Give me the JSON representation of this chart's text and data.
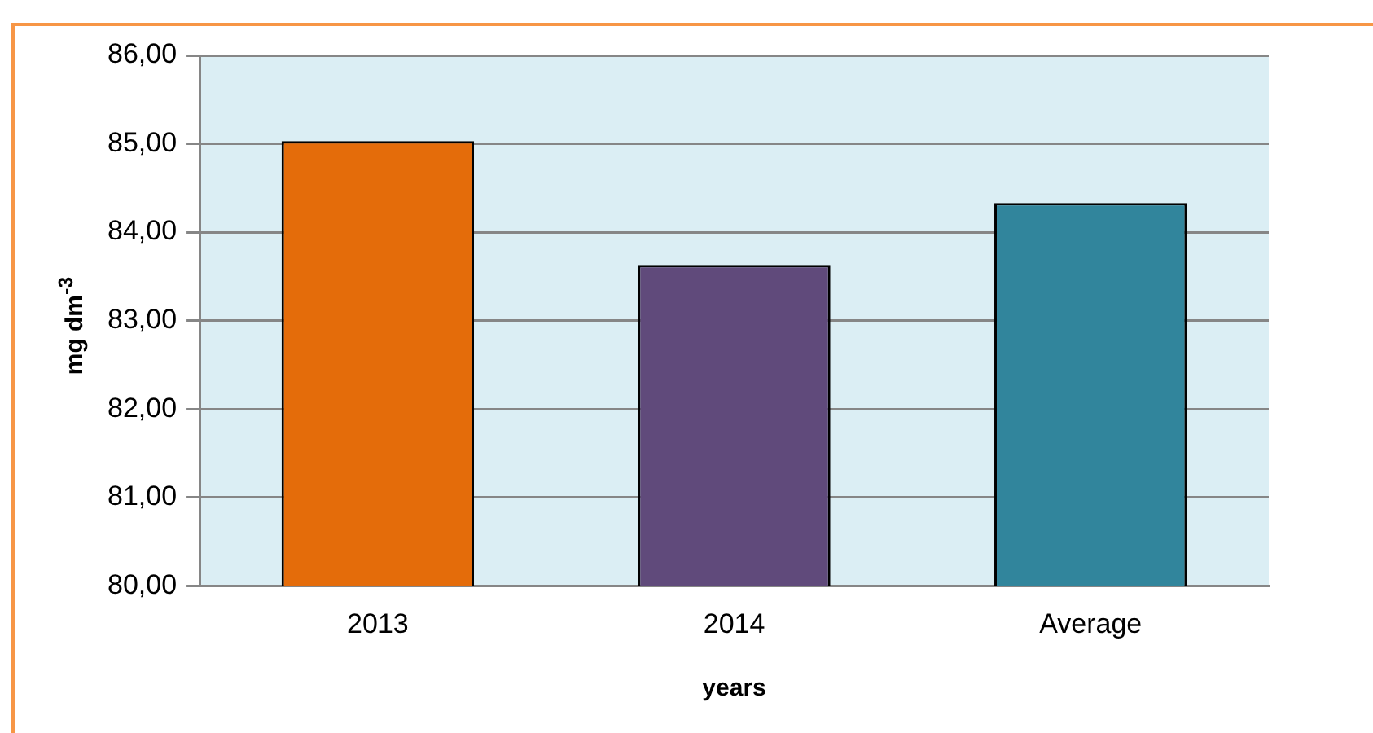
{
  "chart_data": {
    "type": "bar",
    "xlabel": "years",
    "ylabel": "mg dm$^{-3}$",
    "categories": [
      "2013",
      "2014",
      "Average"
    ],
    "values": [
      85.03,
      83.63,
      84.33
    ],
    "colors": [
      "#e46c0a",
      "#604a7b",
      "#31859c"
    ],
    "ylim": [
      80,
      86
    ],
    "yticks": [
      {
        "value": 80,
        "label": "80,00"
      },
      {
        "value": 81,
        "label": "81,00"
      },
      {
        "value": 82,
        "label": "82,00"
      },
      {
        "value": 83,
        "label": "83,00"
      },
      {
        "value": 84,
        "label": "84,00"
      },
      {
        "value": 85,
        "label": "85,00"
      },
      {
        "value": 86,
        "label": "86,00"
      }
    ],
    "grid": "y",
    "legend": false
  }
}
